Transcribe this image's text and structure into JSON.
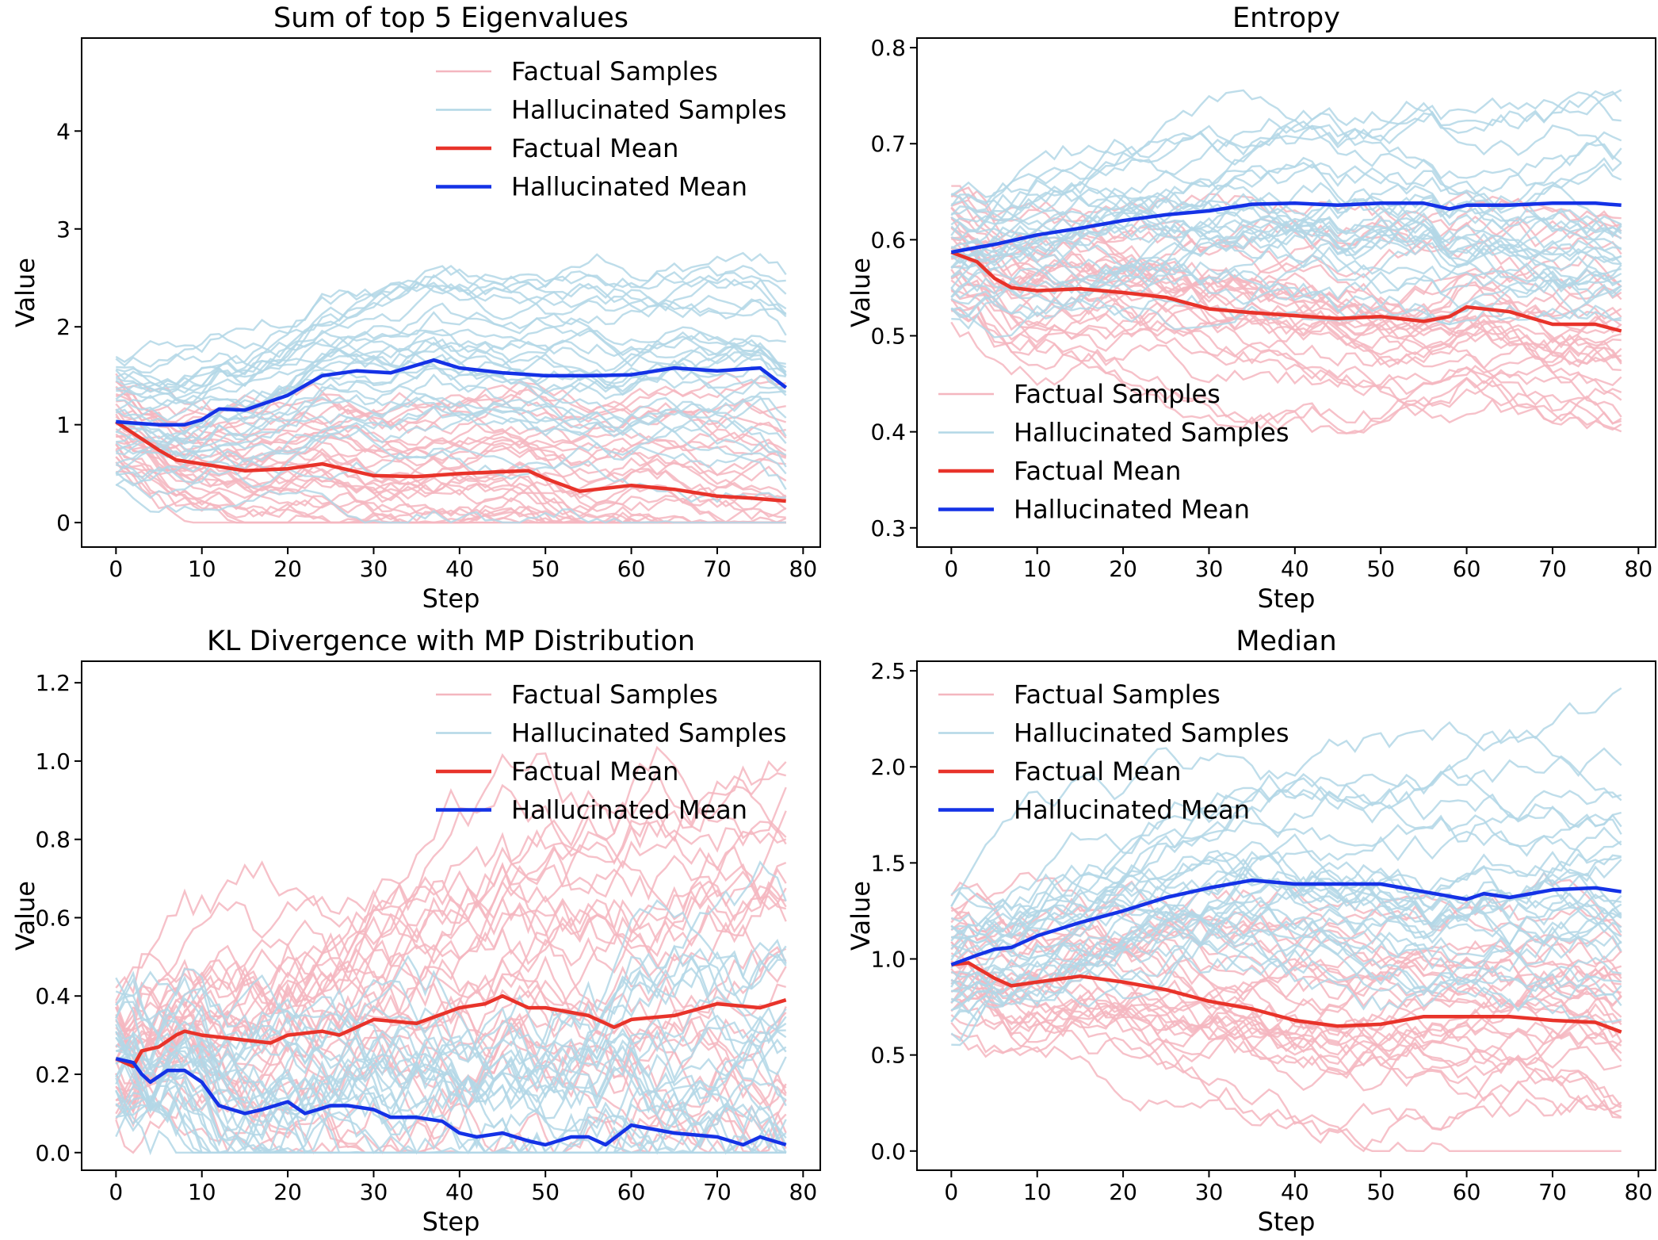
{
  "figure": {
    "legend": {
      "factual_samples": "Factual Samples",
      "hallucinated_samples": "Hallucinated Samples",
      "factual_mean": "Factual Mean",
      "hallucinated_mean": "Hallucinated Mean"
    },
    "colors": {
      "factual_sample": "#f4b6bf",
      "hallucinated_sample": "#b3d7e6",
      "factual_mean": "#e8332a",
      "hallucinated_mean": "#1432e6"
    }
  },
  "chart_data": [
    {
      "type": "line",
      "title": "Sum of top 5 Eigenvalues",
      "xlabel": "Step",
      "ylabel": "Value",
      "xlim": [
        -4,
        82
      ],
      "ylim": [
        -0.25,
        4.95
      ],
      "xticks": [
        0,
        10,
        20,
        30,
        40,
        50,
        60,
        70,
        80
      ],
      "yticks": [
        0,
        1,
        2,
        3,
        4
      ],
      "ytick_labels": [
        "0",
        "1",
        "2",
        "3",
        "4"
      ],
      "legend_position": "top-right",
      "series": [
        {
          "name": "Factual Mean",
          "x": [
            0,
            5,
            7,
            10,
            15,
            20,
            24,
            30,
            35,
            40,
            45,
            48,
            50,
            54,
            60,
            65,
            70,
            74,
            78
          ],
          "values": [
            1.03,
            0.74,
            0.64,
            0.6,
            0.53,
            0.55,
            0.6,
            0.48,
            0.47,
            0.5,
            0.52,
            0.53,
            0.45,
            0.32,
            0.38,
            0.34,
            0.27,
            0.25,
            0.22
          ]
        },
        {
          "name": "Hallucinated Mean",
          "x": [
            0,
            5,
            8,
            10,
            12,
            15,
            20,
            24,
            28,
            32,
            37,
            40,
            45,
            50,
            55,
            60,
            65,
            70,
            75,
            78
          ],
          "values": [
            1.03,
            1.0,
            1.0,
            1.05,
            1.16,
            1.15,
            1.3,
            1.5,
            1.55,
            1.53,
            1.66,
            1.58,
            1.53,
            1.5,
            1.5,
            1.51,
            1.58,
            1.55,
            1.58,
            1.38
          ]
        }
      ]
    },
    {
      "type": "line",
      "title": "Entropy",
      "xlabel": "Step",
      "ylabel": "Value",
      "xlim": [
        -4,
        82
      ],
      "ylim": [
        0.28,
        0.81
      ],
      "xticks": [
        0,
        10,
        20,
        30,
        40,
        50,
        60,
        70,
        80
      ],
      "yticks": [
        0.3,
        0.4,
        0.5,
        0.6,
        0.7,
        0.8
      ],
      "ytick_labels": [
        "0.3",
        "0.4",
        "0.5",
        "0.6",
        "0.7",
        "0.8"
      ],
      "legend_position": "bottom-left",
      "series": [
        {
          "name": "Factual Mean",
          "x": [
            0,
            3,
            5,
            7,
            10,
            15,
            20,
            25,
            30,
            35,
            40,
            45,
            50,
            55,
            58,
            60,
            65,
            70,
            75,
            78
          ],
          "values": [
            0.587,
            0.577,
            0.56,
            0.55,
            0.547,
            0.549,
            0.545,
            0.54,
            0.528,
            0.524,
            0.521,
            0.518,
            0.52,
            0.515,
            0.52,
            0.53,
            0.525,
            0.512,
            0.512,
            0.505
          ]
        },
        {
          "name": "Hallucinated Mean",
          "x": [
            0,
            3,
            5,
            10,
            15,
            20,
            25,
            30,
            35,
            40,
            45,
            50,
            55,
            58,
            60,
            65,
            70,
            75,
            78
          ],
          "values": [
            0.587,
            0.592,
            0.595,
            0.605,
            0.612,
            0.62,
            0.626,
            0.63,
            0.637,
            0.638,
            0.636,
            0.638,
            0.638,
            0.632,
            0.636,
            0.636,
            0.638,
            0.638,
            0.636
          ]
        }
      ]
    },
    {
      "type": "line",
      "title": "KL Divergence with MP Distribution",
      "xlabel": "Step",
      "ylabel": "Value",
      "xlim": [
        -4,
        82
      ],
      "ylim": [
        -0.045,
        1.255
      ],
      "xticks": [
        0,
        10,
        20,
        30,
        40,
        50,
        60,
        70,
        80
      ],
      "yticks": [
        0.0,
        0.2,
        0.4,
        0.6,
        0.8,
        1.0,
        1.2
      ],
      "ytick_labels": [
        "0.0",
        "0.2",
        "0.4",
        "0.6",
        "0.8",
        "1.0",
        "1.2"
      ],
      "legend_position": "top-right",
      "series": [
        {
          "name": "Factual Mean",
          "x": [
            0,
            2,
            3,
            5,
            7,
            8,
            10,
            14,
            18,
            20,
            24,
            26,
            30,
            35,
            40,
            43,
            45,
            48,
            50,
            55,
            58,
            60,
            65,
            70,
            75,
            78
          ],
          "values": [
            0.24,
            0.22,
            0.26,
            0.27,
            0.3,
            0.31,
            0.3,
            0.29,
            0.28,
            0.3,
            0.31,
            0.3,
            0.34,
            0.33,
            0.37,
            0.38,
            0.4,
            0.37,
            0.37,
            0.35,
            0.32,
            0.34,
            0.35,
            0.38,
            0.37,
            0.39
          ]
        },
        {
          "name": "Hallucinated Mean",
          "x": [
            0,
            2,
            3,
            4,
            6,
            8,
            10,
            12,
            15,
            17,
            20,
            22,
            25,
            27,
            30,
            32,
            35,
            38,
            40,
            42,
            45,
            48,
            50,
            53,
            55,
            57,
            60,
            65,
            70,
            73,
            75,
            78
          ],
          "values": [
            0.24,
            0.23,
            0.2,
            0.18,
            0.21,
            0.21,
            0.18,
            0.12,
            0.1,
            0.11,
            0.13,
            0.1,
            0.12,
            0.12,
            0.11,
            0.09,
            0.09,
            0.08,
            0.05,
            0.04,
            0.05,
            0.03,
            0.02,
            0.04,
            0.04,
            0.02,
            0.07,
            0.05,
            0.04,
            0.02,
            0.04,
            0.02
          ]
        }
      ]
    },
    {
      "type": "line",
      "title": "Median",
      "xlabel": "Step",
      "ylabel": "Value",
      "xlim": [
        -4,
        82
      ],
      "ylim": [
        -0.1,
        2.55
      ],
      "xticks": [
        0,
        10,
        20,
        30,
        40,
        50,
        60,
        70,
        80
      ],
      "yticks": [
        0.0,
        0.5,
        1.0,
        1.5,
        2.0,
        2.5
      ],
      "ytick_labels": [
        "0.0",
        "0.5",
        "1.0",
        "1.5",
        "2.0",
        "2.5"
      ],
      "legend_position": "top-left",
      "series": [
        {
          "name": "Factual Mean",
          "x": [
            0,
            2,
            5,
            7,
            10,
            15,
            20,
            25,
            30,
            35,
            40,
            45,
            50,
            55,
            60,
            65,
            70,
            75,
            78
          ],
          "values": [
            0.97,
            0.98,
            0.9,
            0.86,
            0.88,
            0.91,
            0.88,
            0.84,
            0.78,
            0.74,
            0.68,
            0.65,
            0.66,
            0.7,
            0.7,
            0.7,
            0.68,
            0.67,
            0.62
          ]
        },
        {
          "name": "Hallucinated Mean",
          "x": [
            0,
            3,
            5,
            7,
            10,
            15,
            20,
            25,
            30,
            35,
            40,
            45,
            50,
            55,
            60,
            62,
            65,
            70,
            75,
            78
          ],
          "values": [
            0.97,
            1.02,
            1.05,
            1.06,
            1.12,
            1.19,
            1.25,
            1.32,
            1.37,
            1.41,
            1.39,
            1.39,
            1.39,
            1.35,
            1.31,
            1.34,
            1.32,
            1.36,
            1.37,
            1.35
          ]
        }
      ]
    }
  ]
}
